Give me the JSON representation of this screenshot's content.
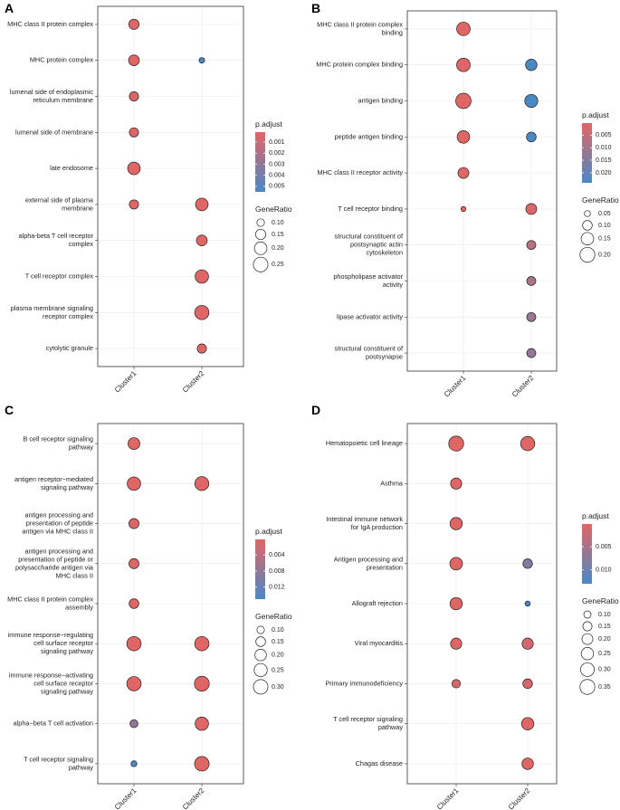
{
  "chart_data": [
    {
      "type": "scatter",
      "panel": "A",
      "categories": [
        "Cluster1",
        "Cluster2"
      ],
      "terms": [
        "MHC class II protein complex",
        "MHC protein complex",
        "lumenal side of endoplasmic reticulum membrane",
        "lumenal side of membrane",
        "late endosome",
        "external side of plasma membrane",
        "alpha-beta T cell receptor complex",
        "T cell receptor complex",
        "plasma membrane signaling receptor complex",
        "cytolytic granule"
      ],
      "term_lines": [
        [
          "MHC class II protein complex"
        ],
        [
          "MHC protein complex"
        ],
        [
          "lumenal side of endoplasmic",
          "reticulum membrane"
        ],
        [
          "lumenal side of membrane"
        ],
        [
          "late endosome"
        ],
        [
          "external side of plasma",
          "membrane"
        ],
        [
          "alpha-beta T cell receptor",
          "complex"
        ],
        [
          "T cell receptor complex"
        ],
        [
          "plasma membrane signaling",
          "receptor complex"
        ],
        [
          "cytolytic granule"
        ]
      ],
      "points": [
        {
          "term": 0,
          "cluster": 0,
          "gene_ratio": 0.15,
          "p_adjust": 0.0001
        },
        {
          "term": 1,
          "cluster": 0,
          "gene_ratio": 0.16,
          "p_adjust": 0.0001
        },
        {
          "term": 1,
          "cluster": 1,
          "gene_ratio": 0.07,
          "p_adjust": 0.0055
        },
        {
          "term": 2,
          "cluster": 0,
          "gene_ratio": 0.13,
          "p_adjust": 0.0001
        },
        {
          "term": 3,
          "cluster": 0,
          "gene_ratio": 0.13,
          "p_adjust": 0.0001
        },
        {
          "term": 4,
          "cluster": 0,
          "gene_ratio": 0.2,
          "p_adjust": 0.0001
        },
        {
          "term": 5,
          "cluster": 0,
          "gene_ratio": 0.13,
          "p_adjust": 0.0001
        },
        {
          "term": 5,
          "cluster": 1,
          "gene_ratio": 0.2,
          "p_adjust": 0.0001
        },
        {
          "term": 6,
          "cluster": 1,
          "gene_ratio": 0.16,
          "p_adjust": 0.0001
        },
        {
          "term": 7,
          "cluster": 1,
          "gene_ratio": 0.22,
          "p_adjust": 0.0001
        },
        {
          "term": 8,
          "cluster": 1,
          "gene_ratio": 0.24,
          "p_adjust": 0.0001
        },
        {
          "term": 9,
          "cluster": 1,
          "gene_ratio": 0.13,
          "p_adjust": 0.0001
        }
      ],
      "color_range": [
        0.0001,
        0.0055
      ],
      "size_range": [
        0.05,
        0.27
      ],
      "legend": {
        "color_title": "p.adjust",
        "color_ticks": [
          "0.001",
          "0.002",
          "0.003",
          "0.004",
          "0.005"
        ],
        "color_tick_values": [
          0.001,
          0.002,
          0.003,
          0.004,
          0.005
        ],
        "size_title": "GeneRatio",
        "size_ticks": [
          "0.10",
          "0.15",
          "0.20",
          "0.25"
        ],
        "size_tick_values": [
          0.1,
          0.15,
          0.2,
          0.25
        ]
      }
    },
    {
      "type": "scatter",
      "panel": "B",
      "categories": [
        "Cluster1",
        "Cluster2"
      ],
      "terms": [
        "MHC class II protein complex binding",
        "MHC protein complex binding",
        "antigen binding",
        "peptide antigen binding",
        "MHC class II receptor activity",
        "T cell receptor binding",
        "structural constituent of postsynaptic actin cytoskeleton",
        "phospholipase activator activity",
        "lipase activator activity",
        "structural constituent of postsynapse"
      ],
      "term_lines": [
        [
          "MHC class II protein complex",
          "binding"
        ],
        [
          "MHC protein complex binding"
        ],
        [
          "antigen binding"
        ],
        [
          "peptide antigen binding"
        ],
        [
          "MHC class II receptor activity"
        ],
        [
          "T cell receptor binding"
        ],
        [
          "structural constituent of",
          "postsynaptic actin",
          "cytoskeleton"
        ],
        [
          "phospholipase activator",
          "activity"
        ],
        [
          "lipase activator activity"
        ],
        [
          "structural constituent of",
          "postsynapse"
        ]
      ],
      "points": [
        {
          "term": 0,
          "cluster": 0,
          "gene_ratio": 0.17,
          "p_adjust": 0.0002
        },
        {
          "term": 1,
          "cluster": 0,
          "gene_ratio": 0.17,
          "p_adjust": 0.0002
        },
        {
          "term": 1,
          "cluster": 1,
          "gene_ratio": 0.13,
          "p_adjust": 0.024
        },
        {
          "term": 2,
          "cluster": 0,
          "gene_ratio": 0.21,
          "p_adjust": 0.0002
        },
        {
          "term": 2,
          "cluster": 1,
          "gene_ratio": 0.16,
          "p_adjust": 0.024
        },
        {
          "term": 3,
          "cluster": 0,
          "gene_ratio": 0.15,
          "p_adjust": 0.0002
        },
        {
          "term": 3,
          "cluster": 1,
          "gene_ratio": 0.1,
          "p_adjust": 0.024
        },
        {
          "term": 4,
          "cluster": 0,
          "gene_ratio": 0.12,
          "p_adjust": 0.0002
        },
        {
          "term": 5,
          "cluster": 0,
          "gene_ratio": 0.04,
          "p_adjust": 0.0002
        },
        {
          "term": 5,
          "cluster": 1,
          "gene_ratio": 0.12,
          "p_adjust": 0.001
        },
        {
          "term": 6,
          "cluster": 1,
          "gene_ratio": 0.09,
          "p_adjust": 0.006
        },
        {
          "term": 7,
          "cluster": 1,
          "gene_ratio": 0.09,
          "p_adjust": 0.009
        },
        {
          "term": 8,
          "cluster": 1,
          "gene_ratio": 0.09,
          "p_adjust": 0.011
        },
        {
          "term": 9,
          "cluster": 1,
          "gene_ratio": 0.09,
          "p_adjust": 0.012
        }
      ],
      "color_range": [
        0.0002,
        0.024
      ],
      "size_range": [
        0.03,
        0.21
      ],
      "legend": {
        "color_title": "p.adjust",
        "color_ticks": [
          "0.005",
          "0.010",
          "0.015",
          "0.020"
        ],
        "color_tick_values": [
          0.005,
          0.01,
          0.015,
          0.02
        ],
        "size_title": "GeneRatio",
        "size_ticks": [
          "0.05",
          "0.10",
          "0.15",
          "0.20"
        ],
        "size_tick_values": [
          0.05,
          0.1,
          0.15,
          0.2
        ]
      }
    },
    {
      "type": "scatter",
      "panel": "C",
      "categories": [
        "Cluster1",
        "Cluster2"
      ],
      "terms": [
        "B cell receptor signaling pathway",
        "antigen receptor-mediated signaling pathway",
        "antigen processing and presentation of peptide antigen via MHC class II",
        "antigen processing and presentation of peptide or polysaccharide antigen via MHC class II",
        "MHC class II protein complex assembly",
        "immune response-regulating cell surface receptor signaling pathway",
        "immune response-activating cell surface receptor signaling pathway",
        "alpha-beta T cell activation",
        "T cell receptor signaling pathway"
      ],
      "term_lines": [
        [
          "B cell receptor signaling",
          "pathway"
        ],
        [
          "antigen receptor−mediated",
          "signaling pathway"
        ],
        [
          "antigen processing and",
          "presentation of peptide",
          "antigen via MHC class II"
        ],
        [
          "antigen processing and",
          "presentation of peptide or",
          "polysaccharide antigen via",
          "MHC class II"
        ],
        [
          "MHC class II protein complex",
          "assembly"
        ],
        [
          "immune response−regulating",
          "cell surface receptor",
          "signaling pathway"
        ],
        [
          "immune response−activating",
          "cell surface receptor",
          "signaling pathway"
        ],
        [
          "alpha−beta T cell activation"
        ],
        [
          "T cell receptor signaling",
          "pathway"
        ]
      ],
      "points": [
        {
          "term": 0,
          "cluster": 0,
          "gene_ratio": 0.21,
          "p_adjust": 0.0001
        },
        {
          "term": 1,
          "cluster": 0,
          "gene_ratio": 0.26,
          "p_adjust": 0.0001
        },
        {
          "term": 1,
          "cluster": 1,
          "gene_ratio": 0.28,
          "p_adjust": 0.0001
        },
        {
          "term": 2,
          "cluster": 0,
          "gene_ratio": 0.16,
          "p_adjust": 0.0001
        },
        {
          "term": 3,
          "cluster": 0,
          "gene_ratio": 0.16,
          "p_adjust": 0.0001
        },
        {
          "term": 4,
          "cluster": 0,
          "gene_ratio": 0.15,
          "p_adjust": 0.0001
        },
        {
          "term": 5,
          "cluster": 0,
          "gene_ratio": 0.29,
          "p_adjust": 0.0001
        },
        {
          "term": 5,
          "cluster": 1,
          "gene_ratio": 0.29,
          "p_adjust": 0.0001
        },
        {
          "term": 6,
          "cluster": 0,
          "gene_ratio": 0.29,
          "p_adjust": 0.0001
        },
        {
          "term": 6,
          "cluster": 1,
          "gene_ratio": 0.31,
          "p_adjust": 0.0001
        },
        {
          "term": 7,
          "cluster": 0,
          "gene_ratio": 0.11,
          "p_adjust": 0.008
        },
        {
          "term": 7,
          "cluster": 1,
          "gene_ratio": 0.26,
          "p_adjust": 0.0001
        },
        {
          "term": 8,
          "cluster": 0,
          "gene_ratio": 0.07,
          "p_adjust": 0.015
        },
        {
          "term": 8,
          "cluster": 1,
          "gene_ratio": 0.3,
          "p_adjust": 0.0001
        }
      ],
      "color_range": [
        0.0001,
        0.015
      ],
      "size_range": [
        0.04,
        0.33
      ],
      "legend": {
        "color_title": "p.adjust",
        "color_ticks": [
          "0.004",
          "0.008",
          "0.012"
        ],
        "color_tick_values": [
          0.004,
          0.008,
          0.012
        ],
        "size_title": "GeneRatio",
        "size_ticks": [
          "0.10",
          "0.15",
          "0.20",
          "0.25",
          "0.30"
        ],
        "size_tick_values": [
          0.1,
          0.15,
          0.2,
          0.25,
          0.3
        ]
      }
    },
    {
      "type": "scatter",
      "panel": "D",
      "categories": [
        "Cluster1",
        "Cluster2"
      ],
      "terms": [
        "Hematopoietic cell lineage",
        "Asthma",
        "Intestinal immune network for IgA production",
        "Antigen processing and presentation",
        "Allograft rejection",
        "Viral myocarditis",
        "Primary immunodeficiency",
        "T cell receptor signaling pathway",
        "Chagas disease"
      ],
      "term_lines": [
        [
          "Hematopoietic cell lineage"
        ],
        [
          "Asthma"
        ],
        [
          "Intestinal immune network",
          "for IgA production"
        ],
        [
          "Antigen processing and",
          "presentation"
        ],
        [
          "Allograft rejection"
        ],
        [
          "Viral myocarditis"
        ],
        [
          "Primary immunodeficiency"
        ],
        [
          "T cell receptor signaling",
          "pathway"
        ],
        [
          "Chagas disease"
        ]
      ],
      "points": [
        {
          "term": 0,
          "cluster": 0,
          "gene_ratio": 0.35,
          "p_adjust": 0.0001
        },
        {
          "term": 0,
          "cluster": 1,
          "gene_ratio": 0.32,
          "p_adjust": 0.0001
        },
        {
          "term": 1,
          "cluster": 0,
          "gene_ratio": 0.21,
          "p_adjust": 0.0001
        },
        {
          "term": 2,
          "cluster": 0,
          "gene_ratio": 0.25,
          "p_adjust": 0.0001
        },
        {
          "term": 3,
          "cluster": 0,
          "gene_ratio": 0.26,
          "p_adjust": 0.0001
        },
        {
          "term": 3,
          "cluster": 1,
          "gene_ratio": 0.16,
          "p_adjust": 0.008
        },
        {
          "term": 4,
          "cluster": 0,
          "gene_ratio": 0.25,
          "p_adjust": 0.0001
        },
        {
          "term": 4,
          "cluster": 1,
          "gene_ratio": 0.06,
          "p_adjust": 0.013
        },
        {
          "term": 5,
          "cluster": 0,
          "gene_ratio": 0.21,
          "p_adjust": 0.0001
        },
        {
          "term": 5,
          "cluster": 1,
          "gene_ratio": 0.21,
          "p_adjust": 0.001
        },
        {
          "term": 6,
          "cluster": 0,
          "gene_ratio": 0.13,
          "p_adjust": 0.001
        },
        {
          "term": 6,
          "cluster": 1,
          "gene_ratio": 0.16,
          "p_adjust": 0.001
        },
        {
          "term": 7,
          "cluster": 1,
          "gene_ratio": 0.25,
          "p_adjust": 0.0001
        },
        {
          "term": 8,
          "cluster": 1,
          "gene_ratio": 0.22,
          "p_adjust": 0.0001
        }
      ],
      "color_range": [
        0.0001,
        0.013
      ],
      "size_range": [
        0.04,
        0.37
      ],
      "legend": {
        "color_title": "p.adjust",
        "color_ticks": [
          "0.005",
          "0.010"
        ],
        "color_tick_values": [
          0.005,
          0.01
        ],
        "size_title": "GeneRatio",
        "size_ticks": [
          "0.10",
          "0.15",
          "0.20",
          "0.25",
          "0.30",
          "0.35"
        ],
        "size_tick_values": [
          0.1,
          0.15,
          0.2,
          0.25,
          0.3,
          0.35
        ]
      }
    }
  ],
  "colors": {
    "low_p": "#e06666",
    "high_p": "#4a88c4",
    "grid": "#ebebeb"
  }
}
